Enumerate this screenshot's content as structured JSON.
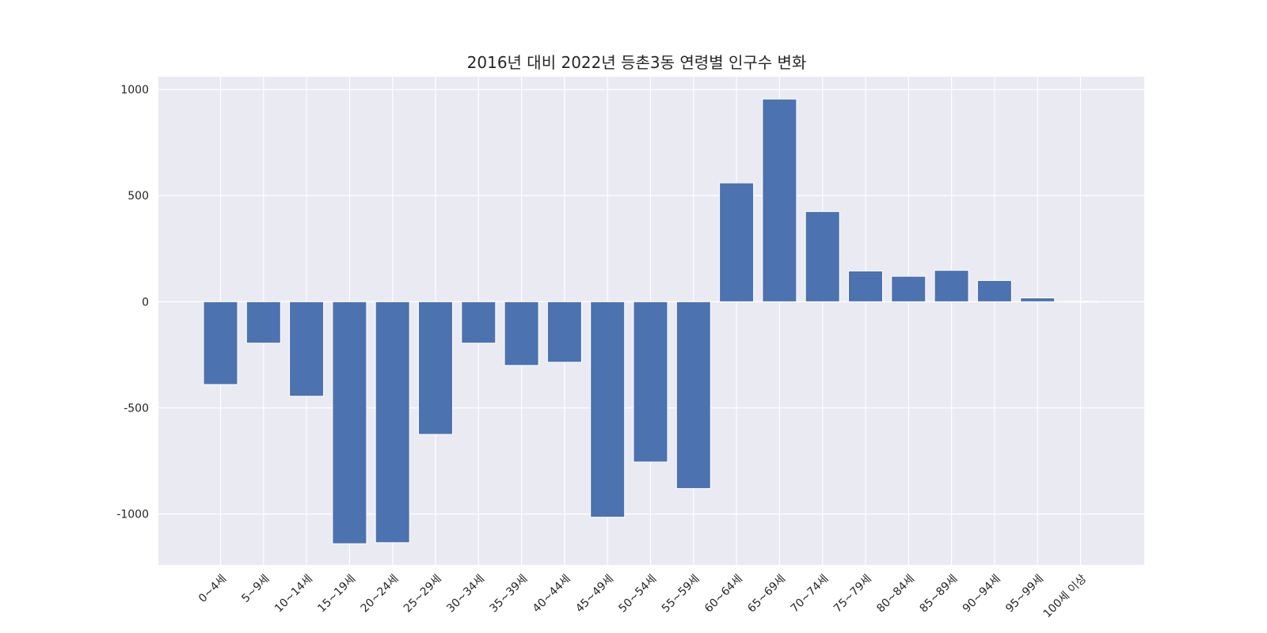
{
  "chart_data": {
    "type": "bar",
    "title": "2016년 대비 2022년 등촌3동 연령별 인구수 변화",
    "xlabel": "",
    "ylabel": "",
    "categories": [
      "0~4세",
      "5~9세",
      "10~14세",
      "15~19세",
      "20~24세",
      "25~29세",
      "30~34세",
      "35~39세",
      "40~44세",
      "45~49세",
      "50~54세",
      "55~59세",
      "60~64세",
      "65~69세",
      "70~74세",
      "75~79세",
      "80~84세",
      "85~89세",
      "90~94세",
      "95~99세",
      "100세 이상"
    ],
    "values": [
      -390,
      -195,
      -445,
      -1140,
      -1135,
      -625,
      -195,
      -300,
      -285,
      -1015,
      -755,
      -880,
      560,
      955,
      425,
      145,
      120,
      148,
      100,
      18,
      2
    ],
    "ylim": [
      -1240,
      1060
    ],
    "yticks": [
      1000,
      500,
      0,
      -500,
      -1000
    ],
    "ytick_labels": [
      "1000",
      "500",
      "0",
      "-500",
      "-1000"
    ],
    "grid": true,
    "colors": {
      "bar": "#4c72b0",
      "plot_bg": "#eaeaf2",
      "grid": "#ffffff",
      "text": "#262626"
    }
  }
}
